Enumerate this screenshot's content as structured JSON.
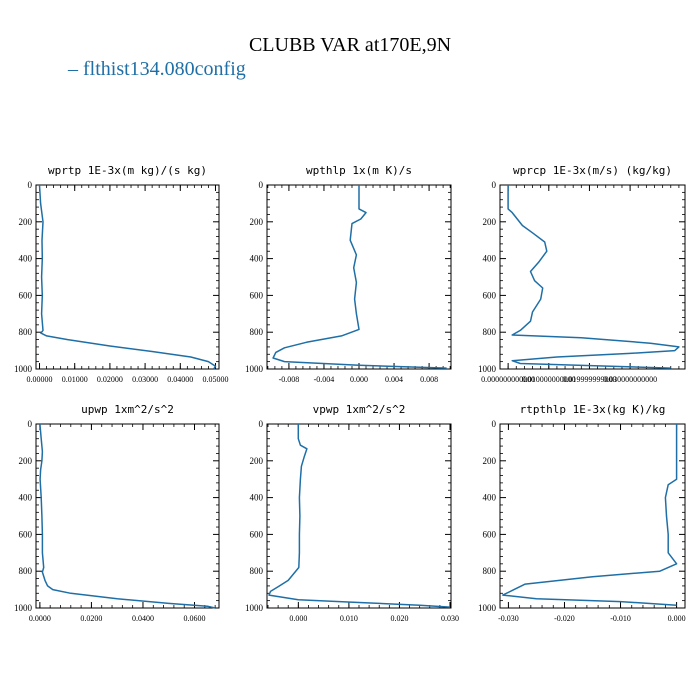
{
  "page": {
    "title": "CLUBB VAR at170E,9N",
    "legend_label": "flthist134.080config",
    "series_color": "#1f6fa6"
  },
  "chart_data": [
    {
      "type": "line",
      "title": "wprtp  1E-3x(m kg)/(s kg)",
      "ylim": [
        1000,
        0
      ],
      "xlim": [
        -0.001,
        0.051
      ],
      "yticks": [
        "0",
        "200",
        "400",
        "600",
        "800",
        "1000"
      ],
      "xticks": [
        "0.00000",
        "0.01000",
        "0.02000",
        "0.03000",
        "0.04000",
        "0.05000"
      ],
      "xtick_values": [
        0,
        0.01,
        0.02,
        0.03,
        0.04,
        0.05
      ],
      "series": [
        {
          "points": [
            [
              0,
              0
            ],
            [
              0.0003,
              100
            ],
            [
              0.001,
              200
            ],
            [
              0.0007,
              300
            ],
            [
              0.0008,
              400
            ],
            [
              0.0006,
              500
            ],
            [
              0.0008,
              600
            ],
            [
              0.0006,
              700
            ],
            [
              0.001,
              790
            ],
            [
              0.0004,
              805
            ],
            [
              0.002,
              820
            ],
            [
              0.008,
              840
            ],
            [
              0.02,
              875
            ],
            [
              0.032,
              905
            ],
            [
              0.043,
              935
            ],
            [
              0.048,
              960
            ],
            [
              0.05,
              985
            ],
            [
              0.0495,
              1000
            ]
          ]
        }
      ]
    },
    {
      "type": "line",
      "title": "wpthlp  1x(m K)/s",
      "ylim": [
        1000,
        0
      ],
      "xlim": [
        -0.0105,
        0.0105
      ],
      "yticks": [
        "0",
        "200",
        "400",
        "600",
        "800",
        "1000"
      ],
      "xticks": [
        "-0.008",
        "-0.004",
        "0.000",
        "0.004",
        "0.008"
      ],
      "xtick_values": [
        -0.008,
        -0.004,
        0,
        0.004,
        0.008
      ],
      "series": [
        {
          "points": [
            [
              0,
              0
            ],
            [
              0,
              80
            ],
            [
              0,
              130
            ],
            [
              0.0008,
              150
            ],
            [
              0.0002,
              185
            ],
            [
              -0.0008,
              210
            ],
            [
              -0.001,
              300
            ],
            [
              -0.0003,
              380
            ],
            [
              -0.0006,
              450
            ],
            [
              -0.0003,
              530
            ],
            [
              -0.0005,
              620
            ],
            [
              -0.0003,
              700
            ],
            [
              0,
              785
            ],
            [
              -0.002,
              820
            ],
            [
              -0.006,
              855
            ],
            [
              -0.0085,
              885
            ],
            [
              -0.0095,
              910
            ],
            [
              -0.0098,
              940
            ],
            [
              -0.0085,
              960
            ],
            [
              0,
              980
            ],
            [
              0.01,
              995
            ]
          ]
        }
      ]
    },
    {
      "type": "line",
      "title": "wprcp  1E-3x(m/s) (kg/kg)",
      "ylim": [
        1000,
        0
      ],
      "xlim": [
        -0.002,
        0.0435
      ],
      "yticks": [
        "0",
        "200",
        "400",
        "600",
        "800",
        "1000"
      ],
      "xticks": [
        "0.000000000000",
        "0.010000000000",
        "0.019999999000",
        "0.030000000000"
      ],
      "xtick_values": [
        0,
        0.01,
        0.02,
        0.03
      ],
      "series": [
        {
          "points": [
            [
              0,
              0
            ],
            [
              0,
              100
            ],
            [
              0,
              130
            ],
            [
              0.001,
              150
            ],
            [
              0.0035,
              220
            ],
            [
              0.006,
              260
            ],
            [
              0.009,
              310
            ],
            [
              0.0095,
              360
            ],
            [
              0.0075,
              420
            ],
            [
              0.0055,
              470
            ],
            [
              0.0065,
              520
            ],
            [
              0.0085,
              560
            ],
            [
              0.008,
              620
            ],
            [
              0.006,
              690
            ],
            [
              0.0055,
              740
            ],
            [
              0.003,
              790
            ],
            [
              0.001,
              815
            ],
            [
              0.018,
              830
            ],
            [
              0.035,
              860
            ],
            [
              0.042,
              880
            ],
            [
              0.041,
              900
            ],
            [
              0.03,
              915
            ],
            [
              0.012,
              935
            ],
            [
              0.001,
              955
            ],
            [
              0.003,
              970
            ],
            [
              0.04,
              995
            ]
          ]
        }
      ]
    },
    {
      "type": "line",
      "title": "upwp  1xm^2/s^2",
      "ylim": [
        1000,
        0
      ],
      "xlim": [
        -0.0015,
        0.0695
      ],
      "yticks": [
        "0",
        "200",
        "400",
        "600",
        "800",
        "1000"
      ],
      "xticks": [
        "0.0000",
        "0.0200",
        "0.0400",
        "0.0600"
      ],
      "xtick_values": [
        0,
        0.02,
        0.04,
        0.06
      ],
      "series": [
        {
          "points": [
            [
              0,
              0
            ],
            [
              0.0005,
              80
            ],
            [
              0.001,
              150
            ],
            [
              0.0008,
              200
            ],
            [
              0.0003,
              250
            ],
            [
              0.0001,
              300
            ],
            [
              0.0005,
              400
            ],
            [
              0.0008,
              500
            ],
            [
              0.001,
              600
            ],
            [
              0.001,
              700
            ],
            [
              0.0015,
              780
            ],
            [
              0.001,
              805
            ],
            [
              0.002,
              850
            ],
            [
              0.003,
              880
            ],
            [
              0.005,
              900
            ],
            [
              0.012,
              920
            ],
            [
              0.03,
              950
            ],
            [
              0.05,
              975
            ],
            [
              0.065,
              990
            ],
            [
              0.068,
              1000
            ]
          ]
        }
      ]
    },
    {
      "type": "line",
      "title": "vpwp  1xm^2/s^2",
      "ylim": [
        1000,
        0
      ],
      "xlim": [
        -0.0062,
        0.0302
      ],
      "yticks": [
        "0",
        "200",
        "400",
        "600",
        "800",
        "1000"
      ],
      "xticks": [
        "0.000",
        "0.010",
        "0.020",
        "0.030"
      ],
      "xtick_values": [
        0,
        0.01,
        0.02,
        0.03
      ],
      "series": [
        {
          "points": [
            [
              0,
              0
            ],
            [
              0,
              80
            ],
            [
              0.0004,
              115
            ],
            [
              0.0017,
              135
            ],
            [
              0.0012,
              175
            ],
            [
              0.0006,
              230
            ],
            [
              0.0004,
              300
            ],
            [
              0.0002,
              400
            ],
            [
              0.0003,
              500
            ],
            [
              0.0002,
              600
            ],
            [
              0.0002,
              700
            ],
            [
              0.0001,
              780
            ],
            [
              -0.002,
              850
            ],
            [
              -0.004,
              885
            ],
            [
              -0.0055,
              910
            ],
            [
              -0.0058,
              930
            ],
            [
              0,
              955
            ],
            [
              0.012,
              970
            ],
            [
              0.024,
              985
            ],
            [
              0.03,
              995
            ]
          ]
        }
      ]
    },
    {
      "type": "line",
      "title": "rtpthlp  1E-3x(kg K)/kg",
      "ylim": [
        1000,
        0
      ],
      "xlim": [
        -0.0315,
        0.0015
      ],
      "yticks": [
        "0",
        "200",
        "400",
        "600",
        "800",
        "1000"
      ],
      "xticks": [
        "-0.030",
        "-0.020",
        "-0.010",
        "0.000"
      ],
      "xtick_values": [
        -0.03,
        -0.02,
        -0.01,
        0
      ],
      "series": [
        {
          "points": [
            [
              0,
              0
            ],
            [
              0,
              100
            ],
            [
              0,
              200
            ],
            [
              0,
              300
            ],
            [
              -0.0015,
              330
            ],
            [
              -0.002,
              400
            ],
            [
              -0.0018,
              500
            ],
            [
              -0.0015,
              600
            ],
            [
              -0.0015,
              700
            ],
            [
              0,
              760
            ],
            [
              -0.003,
              800
            ],
            [
              -0.015,
              830
            ],
            [
              -0.027,
              870
            ],
            [
              -0.029,
              900
            ],
            [
              -0.031,
              930
            ],
            [
              -0.025,
              950
            ],
            [
              -0.01,
              965
            ],
            [
              0,
              985
            ]
          ]
        }
      ]
    }
  ]
}
